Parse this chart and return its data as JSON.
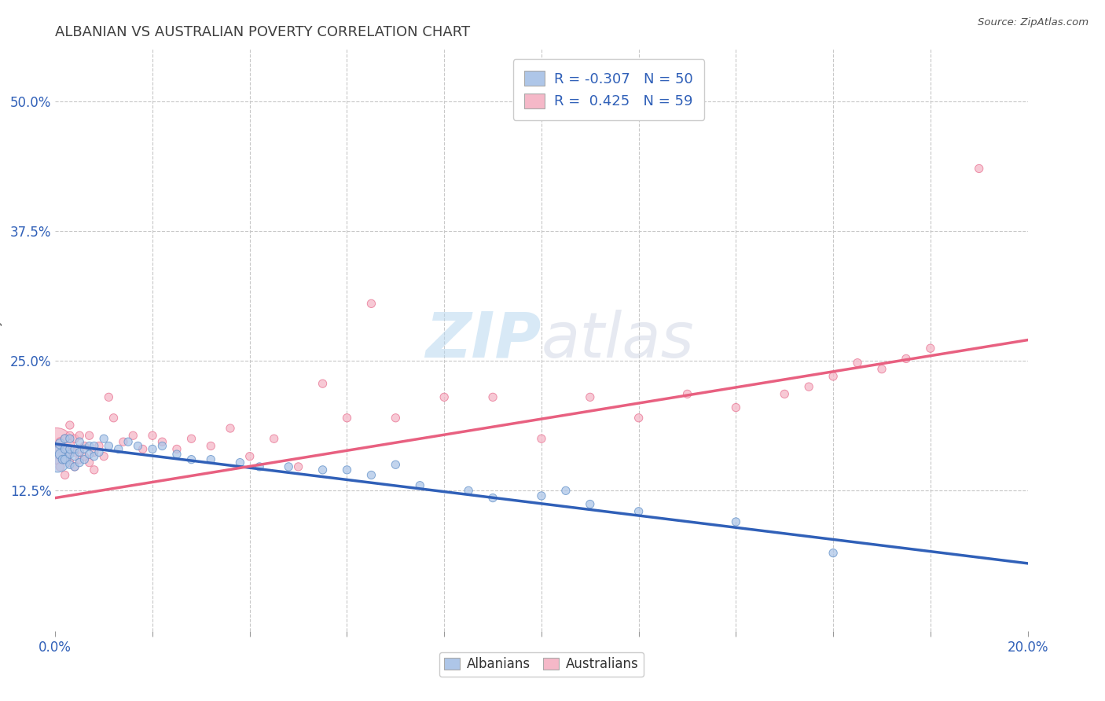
{
  "title": "ALBANIAN VS AUSTRALIAN POVERTY CORRELATION CHART",
  "source": "Source: ZipAtlas.com",
  "ylabel": "Poverty",
  "xlim": [
    0.0,
    0.2
  ],
  "ylim": [
    -0.01,
    0.55
  ],
  "xtick_positions": [
    0.0,
    0.02,
    0.04,
    0.06,
    0.08,
    0.1,
    0.12,
    0.14,
    0.16,
    0.18,
    0.2
  ],
  "ytick_positions": [
    0.125,
    0.25,
    0.375,
    0.5
  ],
  "ytick_labels": [
    "12.5%",
    "25.0%",
    "37.5%",
    "50.0%"
  ],
  "grid_color": "#c8c8c8",
  "background_color": "#ffffff",
  "watermark_zip": "ZIP",
  "watermark_atlas": "atlas",
  "albanians_color": "#aec6e8",
  "australians_color": "#f5b8c8",
  "albanians_edge_color": "#6090c8",
  "australians_edge_color": "#e87090",
  "albanians_line_color": "#3060b8",
  "australians_line_color": "#e86080",
  "legend_R_albanian": "-0.307",
  "legend_N_albanian": "50",
  "legend_R_australian": "0.425",
  "legend_N_australian": "59",
  "title_fontsize": 13,
  "title_color": "#404040",
  "legend_text_color": "#3060b8",
  "albanians_x": [
    0.0005,
    0.001,
    0.001,
    0.0015,
    0.002,
    0.002,
    0.002,
    0.003,
    0.003,
    0.003,
    0.003,
    0.004,
    0.004,
    0.004,
    0.005,
    0.005,
    0.005,
    0.006,
    0.006,
    0.007,
    0.007,
    0.008,
    0.008,
    0.009,
    0.01,
    0.011,
    0.013,
    0.015,
    0.017,
    0.02,
    0.022,
    0.025,
    0.028,
    0.032,
    0.038,
    0.042,
    0.048,
    0.055,
    0.06,
    0.065,
    0.07,
    0.075,
    0.085,
    0.09,
    0.1,
    0.105,
    0.11,
    0.12,
    0.14,
    0.16
  ],
  "albanians_y": [
    0.155,
    0.16,
    0.17,
    0.155,
    0.155,
    0.165,
    0.175,
    0.15,
    0.16,
    0.165,
    0.175,
    0.148,
    0.158,
    0.165,
    0.152,
    0.162,
    0.172,
    0.155,
    0.165,
    0.16,
    0.168,
    0.158,
    0.168,
    0.162,
    0.175,
    0.168,
    0.165,
    0.172,
    0.168,
    0.165,
    0.168,
    0.16,
    0.155,
    0.155,
    0.152,
    0.148,
    0.148,
    0.145,
    0.145,
    0.14,
    0.15,
    0.13,
    0.125,
    0.118,
    0.12,
    0.125,
    0.112,
    0.105,
    0.095,
    0.065
  ],
  "albanians_sizes": [
    550,
    80,
    80,
    60,
    60,
    60,
    60,
    55,
    55,
    55,
    55,
    55,
    55,
    55,
    55,
    55,
    55,
    55,
    55,
    55,
    55,
    55,
    55,
    55,
    55,
    55,
    55,
    55,
    55,
    55,
    55,
    55,
    55,
    55,
    55,
    55,
    55,
    55,
    55,
    55,
    55,
    55,
    55,
    55,
    55,
    55,
    55,
    55,
    55,
    55
  ],
  "australians_x": [
    0.0002,
    0.0005,
    0.001,
    0.001,
    0.001,
    0.002,
    0.002,
    0.002,
    0.003,
    0.003,
    0.003,
    0.003,
    0.004,
    0.004,
    0.004,
    0.005,
    0.005,
    0.005,
    0.006,
    0.006,
    0.007,
    0.007,
    0.008,
    0.008,
    0.009,
    0.01,
    0.011,
    0.012,
    0.014,
    0.016,
    0.018,
    0.02,
    0.022,
    0.025,
    0.028,
    0.032,
    0.036,
    0.04,
    0.045,
    0.05,
    0.055,
    0.06,
    0.065,
    0.07,
    0.08,
    0.09,
    0.1,
    0.11,
    0.12,
    0.13,
    0.14,
    0.15,
    0.155,
    0.16,
    0.165,
    0.17,
    0.175,
    0.18,
    0.19
  ],
  "australians_y": [
    0.168,
    0.165,
    0.148,
    0.158,
    0.172,
    0.14,
    0.155,
    0.175,
    0.152,
    0.162,
    0.178,
    0.188,
    0.148,
    0.162,
    0.175,
    0.155,
    0.165,
    0.178,
    0.158,
    0.168,
    0.152,
    0.178,
    0.145,
    0.162,
    0.168,
    0.158,
    0.215,
    0.195,
    0.172,
    0.178,
    0.165,
    0.178,
    0.172,
    0.165,
    0.175,
    0.168,
    0.185,
    0.158,
    0.175,
    0.148,
    0.228,
    0.195,
    0.305,
    0.195,
    0.215,
    0.215,
    0.175,
    0.215,
    0.195,
    0.218,
    0.205,
    0.218,
    0.225,
    0.235,
    0.248,
    0.242,
    0.252,
    0.262,
    0.435
  ],
  "australians_sizes": [
    1100,
    80,
    60,
    60,
    60,
    55,
    55,
    55,
    55,
    55,
    55,
    55,
    55,
    55,
    55,
    55,
    55,
    55,
    55,
    55,
    55,
    55,
    55,
    55,
    55,
    55,
    55,
    55,
    55,
    55,
    55,
    55,
    55,
    55,
    55,
    55,
    55,
    55,
    55,
    55,
    55,
    55,
    55,
    55,
    55,
    55,
    55,
    55,
    55,
    55,
    55,
    55,
    55,
    55,
    55,
    55,
    55,
    55,
    55
  ]
}
